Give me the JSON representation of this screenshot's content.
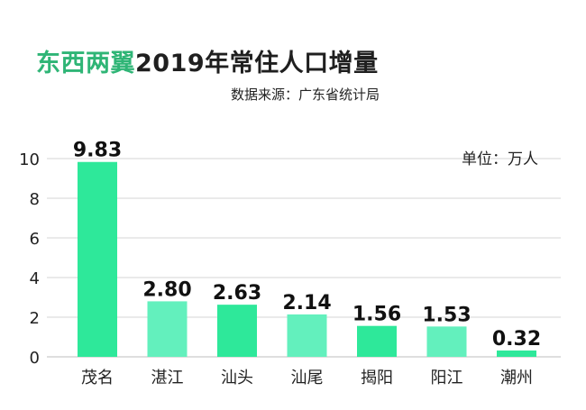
{
  "chart_data": {
    "type": "bar",
    "title": {
      "highlight": "东西两翼",
      "rest": "2019年常住人口增量"
    },
    "subtitle": "数据来源：广东省统计局",
    "unit_label": "单位：万人",
    "categories": [
      "茂名",
      "湛江",
      "汕头",
      "汕尾",
      "揭阳",
      "阳江",
      "潮州"
    ],
    "values": [
      9.83,
      2.8,
      2.63,
      2.14,
      1.56,
      1.53,
      0.32
    ],
    "value_labels": [
      "9.83",
      "2.80",
      "2.63",
      "2.14",
      "1.56",
      "1.53",
      "0.32"
    ],
    "y_ticks": [
      "0",
      "2",
      "4",
      "6",
      "8",
      "10"
    ],
    "ylim": [
      0,
      10
    ],
    "grid": true,
    "bar_colors": [
      "#2ee89a",
      "#63f0bd",
      "#2ee89a",
      "#63f0bd",
      "#2ee89a",
      "#63f0bd",
      "#2ee89a"
    ],
    "grid_color": "#d4d4d4",
    "title_highlight_color": "#2fb576"
  }
}
